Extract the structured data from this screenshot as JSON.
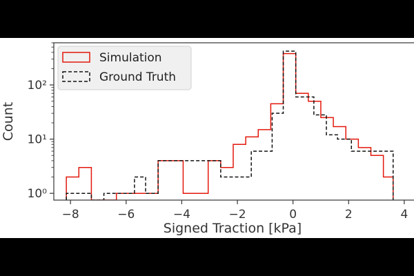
{
  "chart_data": {
    "type": "histogram",
    "xlabel": "Signed Traction [kPa]",
    "ylabel": "Count",
    "xlim": [
      -8.6,
      4.4
    ],
    "ylim": [
      0.75,
      600
    ],
    "yscale": "log",
    "grid": false,
    "legend_position": "top-left",
    "xticks": [
      -8,
      -6,
      -4,
      -2,
      0,
      2,
      4
    ],
    "xtick_labels": [
      "−8",
      "−6",
      "−4",
      "−2",
      "0",
      "2",
      "4"
    ],
    "yticks": [
      1,
      10,
      100
    ],
    "ytick_labels": [
      "10⁰",
      "10¹",
      "10²"
    ],
    "series": [
      {
        "name": "Simulation",
        "style": "solid",
        "color": "#e3170a",
        "edges": [
          -8.15,
          -7.7,
          -7.25,
          -6.35,
          -4.85,
          -4.4,
          -3.95,
          -3.5,
          -3.05,
          -2.6,
          -2.15,
          -1.7,
          -1.25,
          -0.8,
          -0.35,
          0.1,
          0.55,
          1.0,
          1.45,
          1.9,
          2.35,
          2.8,
          3.25,
          3.6
        ],
        "counts": [
          2,
          3,
          0,
          1,
          4,
          4,
          1,
          1,
          4,
          3,
          8,
          11,
          15,
          45,
          380,
          70,
          50,
          25,
          17,
          10,
          7,
          5,
          2
        ]
      },
      {
        "name": "Ground Truth",
        "style": "dashed",
        "color": "#111111",
        "edges": [
          -8.15,
          -7.25,
          -6.8,
          -6.35,
          -5.7,
          -5.3,
          -4.85,
          -4.0,
          -3.5,
          -3.05,
          -2.6,
          -2.15,
          -1.5,
          -0.75,
          -0.35,
          0.1,
          0.75,
          1.2,
          1.6,
          2.1,
          2.65,
          3.1,
          3.6
        ],
        "counts": [
          1,
          0,
          1,
          1,
          2,
          1,
          4,
          4,
          4,
          4,
          2,
          2,
          6,
          30,
          420,
          60,
          28,
          12,
          10,
          6,
          6,
          6
        ]
      }
    ]
  }
}
